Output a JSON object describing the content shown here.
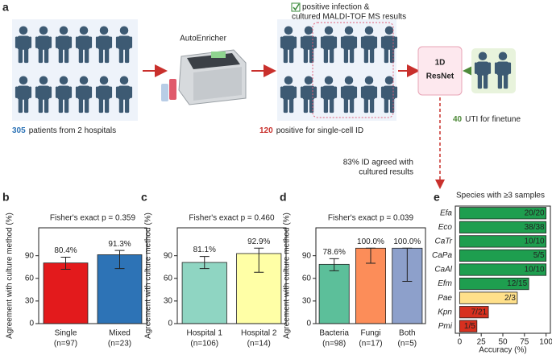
{
  "panel_a": {
    "label": "a",
    "checkbox_text": [
      "positive infection &",
      "cultured MALDI-TOF MS results"
    ],
    "machine_label": "AutoEnricher",
    "count_patients": "305",
    "patients_text": "patients from 2 hospitals",
    "count_positive": "120",
    "positive_text": "positive for single-cell ID",
    "model": [
      "1D",
      "ResNet"
    ],
    "count_finetune": "40",
    "finetune_text": "UTI for finetune",
    "agreement": [
      "83% ID agreed with",
      "cultured results"
    ]
  },
  "chart_data": [
    {
      "type": "bar",
      "panel": "b",
      "title": "Fisher's exact p = 0.359",
      "ylabel": "Agreement with culture method (%)",
      "categories": [
        "Single",
        "Mixed"
      ],
      "category_counts": [
        "(n=97)",
        "(n=23)"
      ],
      "values": [
        80.4,
        91.3
      ],
      "value_labels": [
        "80.4%",
        "91.3%"
      ],
      "ci_low": [
        72,
        73
      ],
      "ci_high": [
        88,
        97
      ],
      "colors": [
        "#e31a1c",
        "#2d73b6"
      ],
      "ylim": [
        0,
        127
      ],
      "yticks": [
        0,
        30,
        60,
        90
      ]
    },
    {
      "type": "bar",
      "panel": "c",
      "title": "Fisher's exact p = 0.460",
      "ylabel": "Agreement with culture method (%)",
      "categories": [
        "Hospital 1",
        "Hospital 2"
      ],
      "category_counts": [
        "(n=106)",
        "(n=14)"
      ],
      "values": [
        81.1,
        92.9
      ],
      "value_labels": [
        "81.1%",
        "92.9%"
      ],
      "ci_low": [
        73,
        68
      ],
      "ci_high": [
        89,
        100
      ],
      "colors": [
        "#8fd5c2",
        "#ffffa6"
      ],
      "ylim": [
        0,
        127
      ],
      "yticks": [
        0,
        30,
        60,
        90
      ]
    },
    {
      "type": "bar",
      "panel": "d",
      "title": "Fisher's exact p = 0.039",
      "ylabel": "Agreement with culture method (%)",
      "categories": [
        "Bacteria",
        "Fungi",
        "Both"
      ],
      "category_counts": [
        "(n=98)",
        "(n=17)",
        "(n=5)"
      ],
      "values": [
        78.6,
        100.0,
        100.0
      ],
      "value_labels": [
        "78.6%",
        "100.0%",
        "100.0%"
      ],
      "ci_low": [
        70,
        80,
        56
      ],
      "ci_high": [
        86,
        100,
        100
      ],
      "colors": [
        "#5cbf9a",
        "#fc8d59",
        "#8da0cb"
      ],
      "ylim": [
        0,
        127
      ],
      "yticks": [
        0,
        30,
        60,
        90
      ]
    },
    {
      "type": "barh",
      "panel": "e",
      "title": "Species with ≥3 samples",
      "xlabel": "Accuracy (%)",
      "categories": [
        "Efa",
        "Eco",
        "CaTr",
        "CaPa",
        "CaAl",
        "Efm",
        "Pae",
        "Kpn",
        "Pmi"
      ],
      "values": [
        100,
        100,
        100,
        100,
        100,
        80,
        66.7,
        33.3,
        20
      ],
      "value_labels": [
        "20/20",
        "38/38",
        "10/10",
        "5/5",
        "10/10",
        "12/15",
        "2/3",
        "7/21",
        "1/5"
      ],
      "colors": [
        "#1e9e4f",
        "#1e9e4f",
        "#1e9e4f",
        "#1e9e4f",
        "#1e9e4f",
        "#1e9e4f",
        "#ffe08a",
        "#d7301f",
        "#d7301f"
      ],
      "xlim": [
        -5,
        105
      ],
      "xticks": [
        0,
        25,
        50,
        75,
        100
      ]
    }
  ]
}
